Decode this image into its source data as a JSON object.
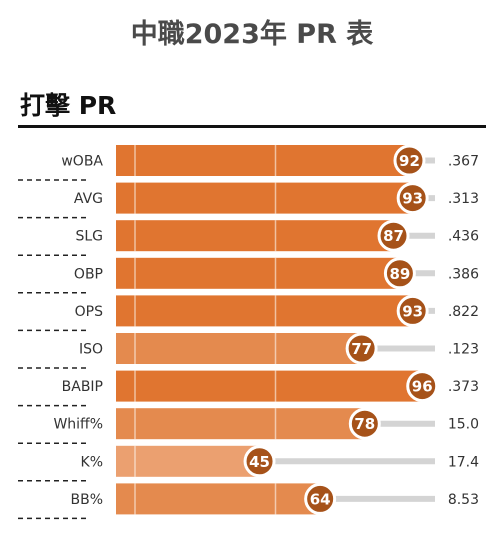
{
  "page": {
    "title": "中職2023年 PR 表",
    "section_title": "打擊 PR"
  },
  "colors": {
    "bar_strong": "#e07530",
    "bar_mid": "#e48a4e",
    "bar_light": "#eba070",
    "badge_fill": "#a65219",
    "track": "#d4d4d4",
    "label": "#333333",
    "divider": "#222222"
  },
  "chart_data": {
    "type": "bar",
    "orientation": "horizontal",
    "xlim": [
      0,
      100
    ],
    "reference_lines": [
      50
    ],
    "categories": [
      "wOBA",
      "AVG",
      "SLG",
      "OBP",
      "OPS",
      "ISO",
      "BABIP",
      "Whiff%",
      "K%",
      "BB%"
    ],
    "values": [
      92,
      93,
      87,
      89,
      93,
      77,
      96,
      78,
      45,
      64
    ],
    "stat_values": [
      ".367",
      ".313",
      ".436",
      ".386",
      ".822",
      ".123",
      ".373",
      "15.0",
      "17.4",
      "8.53"
    ]
  }
}
